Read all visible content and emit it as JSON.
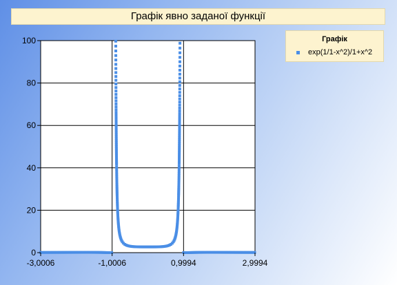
{
  "title": "Графік явно заданої функції",
  "legend": {
    "title": "Графік",
    "position": "top-right",
    "entries": [
      {
        "label": "exp(1/1-x^2)/1+x^2",
        "color": "#4a8ee6"
      }
    ]
  },
  "chart_data": {
    "type": "scatter",
    "title": "Графік явно заданої функції",
    "xlabel": "",
    "ylabel": "",
    "xlim": [
      -3.0006,
      2.9994
    ],
    "ylim": [
      0,
      100
    ],
    "x_ticks": [
      -3.0006,
      -1.0006,
      0.9994,
      2.9994
    ],
    "x_tick_labels": [
      "-3,0006",
      "-1,0006",
      "0,9994",
      "2,9994"
    ],
    "y_ticks": [
      0,
      20,
      40,
      60,
      80,
      100
    ],
    "y_tick_labels": [
      "0",
      "20",
      "40",
      "60",
      "80",
      "100"
    ],
    "grid": true,
    "series": [
      {
        "name": "exp(1/1-x^2)/1+x^2",
        "color": "#4a8ee6",
        "function": "exp(1/(1-x^2))/(1+x^2)",
        "x_range": [
          -3.0006,
          2.9994
        ],
        "x_step": 0.0005,
        "plotted_where_y_below": 100
      }
    ]
  }
}
